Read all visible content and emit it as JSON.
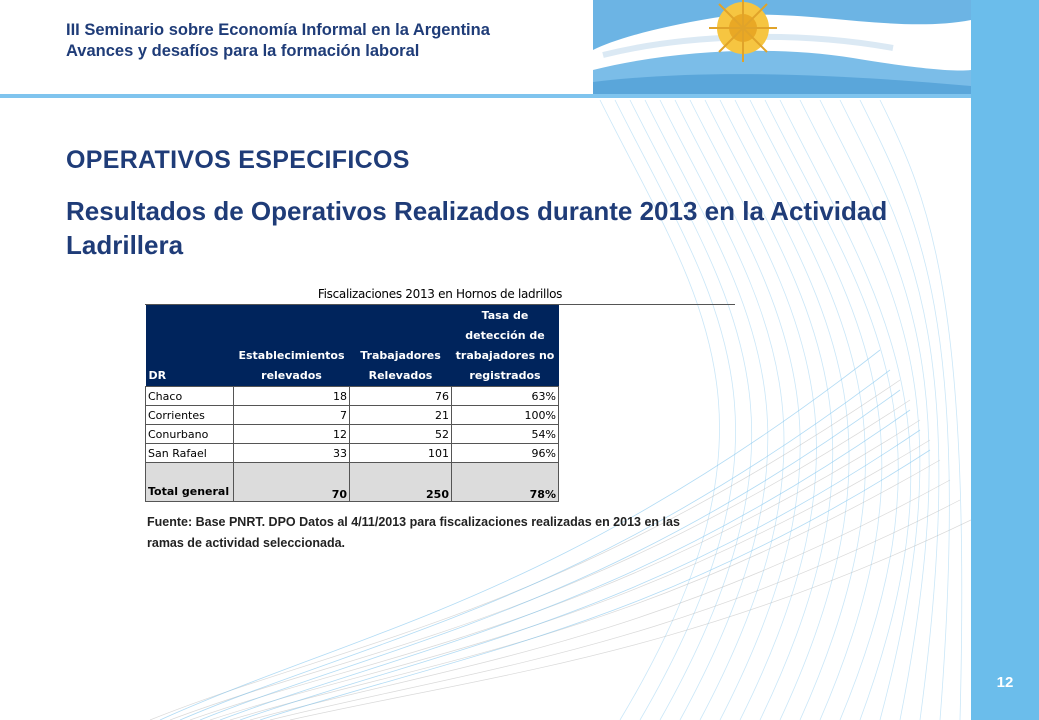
{
  "header": {
    "line1": "III Seminario sobre Economía Informal en la Argentina",
    "line2": "Avances y desafíos para la  formación laboral"
  },
  "section_title": "OPERATIVOS ESPECIFICOS",
  "subtitle": "Resultados de Operativos Realizados durante 2013 en la Actividad Ladrillera",
  "table": {
    "caption": "Fiscalizaciones 2013 en Hornos de ladrillos",
    "headers": {
      "dr": "DR",
      "establecimientos": "Establecimientos relevados",
      "trabajadores": "Trabajadores Relevados",
      "tasa": "Tasa de detección de trabajadores no registrados"
    },
    "rows": [
      {
        "dr": "Chaco",
        "establecimientos": "18",
        "trabajadores": "76",
        "tasa": "63%"
      },
      {
        "dr": "Corrientes",
        "establecimientos": "7",
        "trabajadores": "21",
        "tasa": "100%"
      },
      {
        "dr": "Conurbano",
        "establecimientos": "12",
        "trabajadores": "52",
        "tasa": "54%"
      },
      {
        "dr": "San Rafael",
        "establecimientos": "33",
        "trabajadores": "101",
        "tasa": "96%"
      }
    ],
    "total": {
      "dr": "Total general",
      "establecimientos": "70",
      "trabajadores": "250",
      "tasa": "78%"
    }
  },
  "source": "Fuente: Base PNRT. DPO Datos al 4/11/2013 para fiscalizaciones realizadas en 2013 en las ramas de actividad seleccionada.",
  "page_number": "12",
  "colors": {
    "title": "#1f3c78",
    "table_header": "#00245c",
    "side_bar": "#6bbdeb",
    "total_row": "#dcdcdc"
  }
}
